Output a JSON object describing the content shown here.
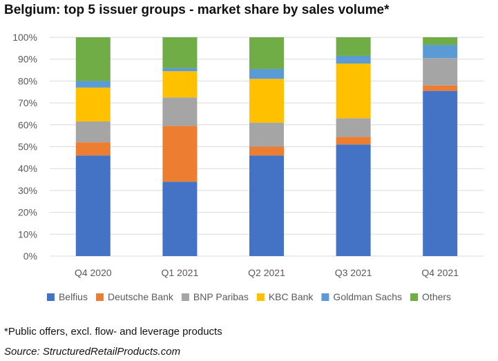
{
  "title": "Belgium: top 5 issuer groups - market share by sales volume*",
  "footnote": "*Public offers, excl. flow- and leverage products",
  "source": "Source: StructuredRetailProducts.com",
  "chart_data": {
    "type": "bar",
    "stacked": true,
    "categories": [
      "Q4 2020",
      "Q1 2021",
      "Q2 2021",
      "Q3 2021",
      "Q4 2021"
    ],
    "ylim": [
      0,
      100
    ],
    "y_ticks": [
      0,
      10,
      20,
      30,
      40,
      50,
      60,
      70,
      80,
      90,
      100
    ],
    "y_tick_labels": [
      "0%",
      "10%",
      "20%",
      "30%",
      "40%",
      "50%",
      "60%",
      "70%",
      "80%",
      "90%",
      "100%"
    ],
    "grid": "horizontal",
    "legend_position": "bottom",
    "series": [
      {
        "name": "Belfius",
        "color": "#4472C4",
        "values": [
          46,
          34,
          46,
          51,
          75.5
        ]
      },
      {
        "name": "Deutsche Bank",
        "color": "#ED7D31",
        "values": [
          6,
          25.5,
          4,
          3.5,
          2.5
        ]
      },
      {
        "name": "BNP Paribas",
        "color": "#A5A5A5",
        "values": [
          9.5,
          13,
          11,
          8.5,
          12.5
        ]
      },
      {
        "name": "KBC Bank",
        "color": "#FFC000",
        "values": [
          15.5,
          12,
          20,
          25,
          0
        ]
      },
      {
        "name": "Goldman Sachs",
        "color": "#5B9BD5",
        "values": [
          3,
          1.5,
          4.5,
          3.5,
          6
        ]
      },
      {
        "name": "Others",
        "color": "#70AD47",
        "values": [
          20,
          14,
          14.5,
          8.5,
          3.5
        ]
      }
    ]
  }
}
